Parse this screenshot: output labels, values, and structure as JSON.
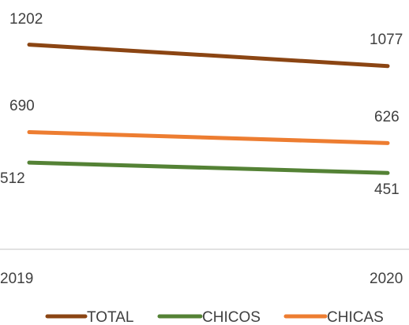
{
  "chart_data": {
    "type": "line",
    "x": [
      "2019",
      "2020"
    ],
    "series": [
      {
        "name": "TOTAL",
        "values": [
          1202,
          1077
        ],
        "color": "#8B4513"
      },
      {
        "name": "CHICOS",
        "values": [
          512,
          451
        ],
        "color": "#548235"
      },
      {
        "name": "CHICAS",
        "values": [
          690,
          626
        ],
        "color": "#ED7D31"
      }
    ],
    "data_labels": {
      "TOTAL": [
        "1202",
        "1077"
      ],
      "CHICOS": [
        "512",
        "451"
      ],
      "CHICAS": [
        "690",
        "626"
      ]
    },
    "x_labels": [
      "2019",
      "2020"
    ],
    "legend": [
      "TOTAL",
      "CHICOS",
      "CHICAS"
    ],
    "legend_position": "bottom",
    "grid": false,
    "y_axis_visible": false,
    "axis_color": "#D9D9D9",
    "text_color": "#404040"
  }
}
